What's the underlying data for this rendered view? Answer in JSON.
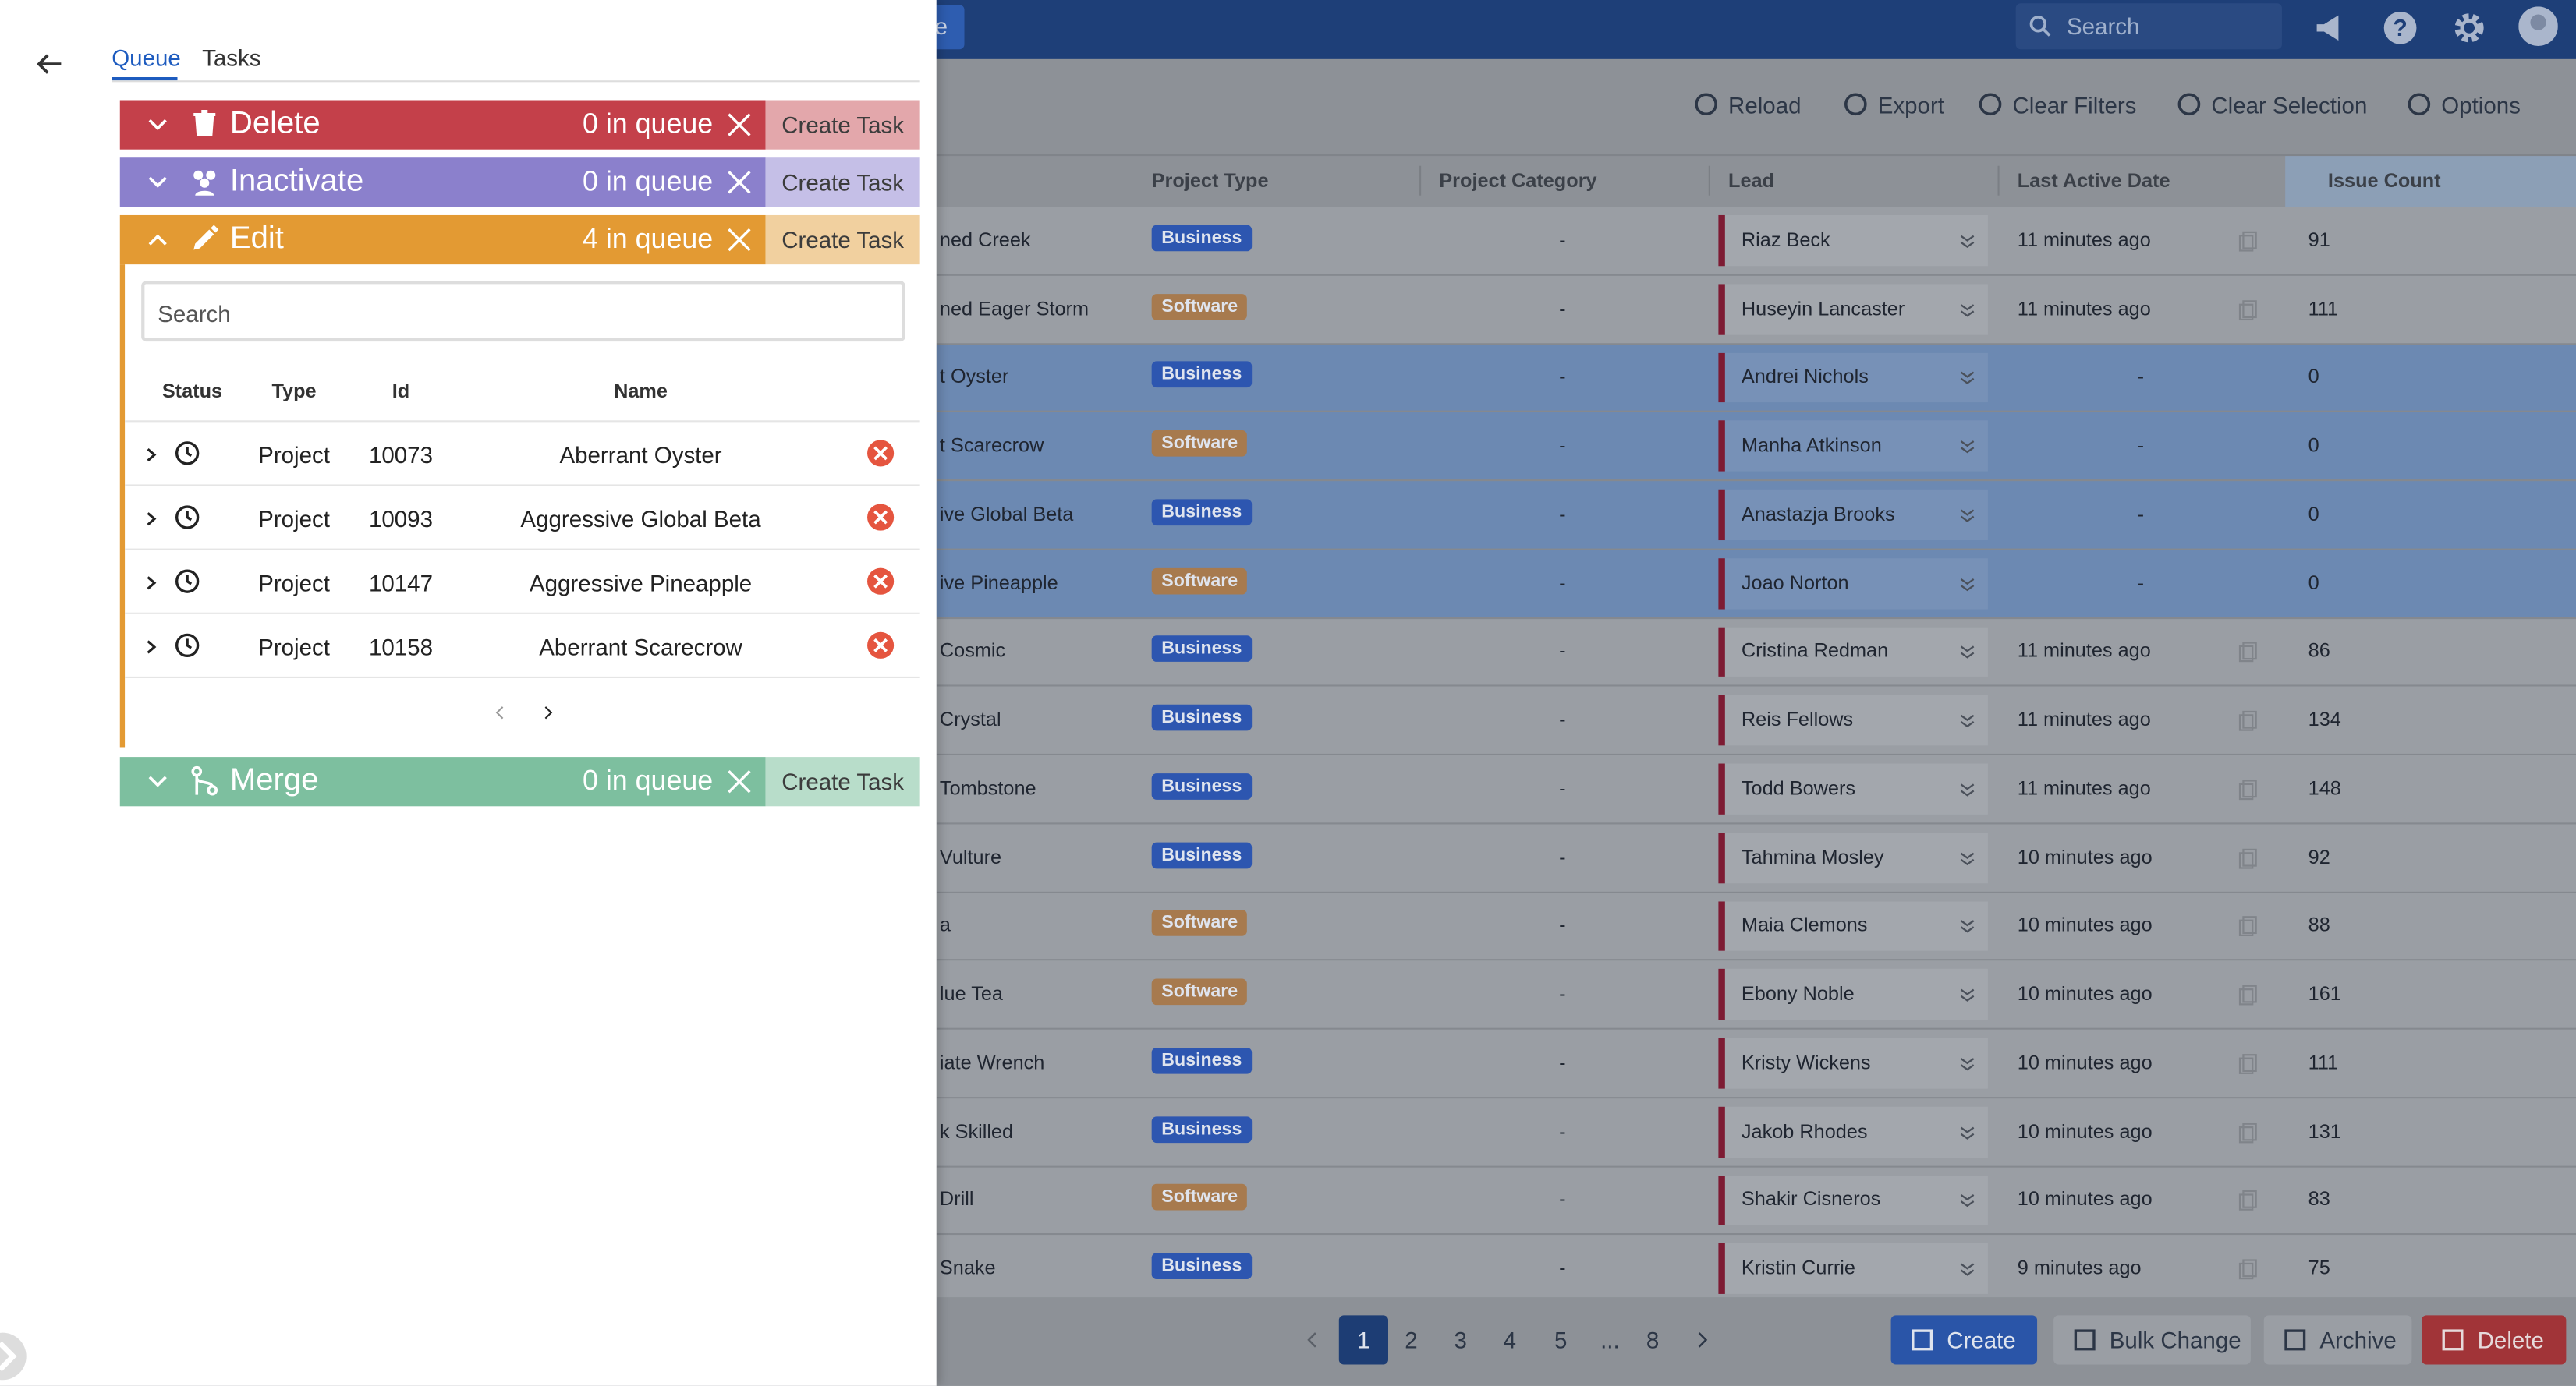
{
  "header": {
    "partial_button": "e",
    "search": "Search"
  },
  "toolbar": [
    "Reload",
    "Export",
    "Clear Filters",
    "Clear Selection",
    "Options"
  ],
  "table": {
    "columns": [
      "Project Type",
      "Project Category",
      "Lead",
      "Last Active Date",
      "Issue Count"
    ],
    "rows": [
      {
        "name": "ned Creek",
        "type": "Business",
        "category": "-",
        "lead": "Riaz Beck",
        "last_active": "11 minutes ago",
        "issue_count": 91,
        "selected": false
      },
      {
        "name": "ned Eager Storm",
        "type": "Software",
        "category": "-",
        "lead": "Huseyin Lancaster",
        "last_active": "11 minutes ago",
        "issue_count": 111,
        "selected": false
      },
      {
        "name": "t Oyster",
        "type": "Business",
        "category": "-",
        "lead": "Andrei Nichols",
        "last_active": "-",
        "issue_count": 0,
        "selected": true
      },
      {
        "name": "t Scarecrow",
        "type": "Software",
        "category": "-",
        "lead": "Manha Atkinson",
        "last_active": "-",
        "issue_count": 0,
        "selected": true
      },
      {
        "name": "ive Global Beta",
        "type": "Business",
        "category": "-",
        "lead": "Anastazja Brooks",
        "last_active": "-",
        "issue_count": 0,
        "selected": true
      },
      {
        "name": "ive Pineapple",
        "type": "Software",
        "category": "-",
        "lead": "Joao Norton",
        "last_active": "-",
        "issue_count": 0,
        "selected": true
      },
      {
        "name": "Cosmic",
        "type": "Business",
        "category": "-",
        "lead": "Cristina Redman",
        "last_active": "11 minutes ago",
        "issue_count": 86,
        "selected": false
      },
      {
        "name": "Crystal",
        "type": "Business",
        "category": "-",
        "lead": "Reis Fellows",
        "last_active": "11 minutes ago",
        "issue_count": 134,
        "selected": false
      },
      {
        "name": "Tombstone",
        "type": "Business",
        "category": "-",
        "lead": "Todd Bowers",
        "last_active": "11 minutes ago",
        "issue_count": 148,
        "selected": false
      },
      {
        "name": "Vulture",
        "type": "Business",
        "category": "-",
        "lead": "Tahmina Mosley",
        "last_active": "10 minutes ago",
        "issue_count": 92,
        "selected": false
      },
      {
        "name": "a",
        "type": "Software",
        "category": "-",
        "lead": "Maia Clemons",
        "last_active": "10 minutes ago",
        "issue_count": 88,
        "selected": false
      },
      {
        "name": "lue Tea",
        "type": "Software",
        "category": "-",
        "lead": "Ebony Noble",
        "last_active": "10 minutes ago",
        "issue_count": 161,
        "selected": false
      },
      {
        "name": "iate Wrench",
        "type": "Business",
        "category": "-",
        "lead": "Kristy Wickens",
        "last_active": "10 minutes ago",
        "issue_count": 111,
        "selected": false
      },
      {
        "name": "k Skilled",
        "type": "Business",
        "category": "-",
        "lead": "Jakob Rhodes",
        "last_active": "10 minutes ago",
        "issue_count": 131,
        "selected": false
      },
      {
        "name": "Drill",
        "type": "Software",
        "category": "-",
        "lead": "Shakir Cisneros",
        "last_active": "10 minutes ago",
        "issue_count": 83,
        "selected": false
      },
      {
        "name": "Snake",
        "type": "Business",
        "category": "-",
        "lead": "Kristin Currie",
        "last_active": "9 minutes ago",
        "issue_count": 75,
        "selected": false
      }
    ]
  },
  "pagination": [
    "1",
    "2",
    "3",
    "4",
    "5",
    "...",
    "8"
  ],
  "footer_actions": [
    "Create",
    "Bulk Change",
    "Archive",
    "Delete"
  ],
  "panel": {
    "tabs": [
      "Queue",
      "Tasks"
    ],
    "queues": [
      {
        "label": "Delete",
        "count": "0 in queue",
        "action": "Create Task",
        "color": "#c4404a",
        "action_color": "#e3a7ab"
      },
      {
        "label": "Inactivate",
        "count": "0 in queue",
        "action": "Create Task",
        "color": "#8b80cc",
        "action_color": "#c5bfe7"
      },
      {
        "label": "Edit",
        "count": "4 in queue",
        "action": "Create Task",
        "color": "#e39a33",
        "action_color": "#f1d09f",
        "expanded": true,
        "search": "Search",
        "columns": [
          "Status",
          "Type",
          "Id",
          "Name"
        ],
        "items": [
          [
            "Project",
            "10073",
            "Aberrant Oyster"
          ],
          [
            "Project",
            "10093",
            "Aggressive Global Beta"
          ],
          [
            "Project",
            "10147",
            "Aggressive Pineapple"
          ],
          [
            "Project",
            "10158",
            "Aberrant Scarecrow"
          ]
        ]
      },
      {
        "label": "Merge",
        "count": "0 in queue",
        "action": "Create Task",
        "color": "#7dbf9f",
        "action_color": "#b8ddca"
      }
    ]
  }
}
